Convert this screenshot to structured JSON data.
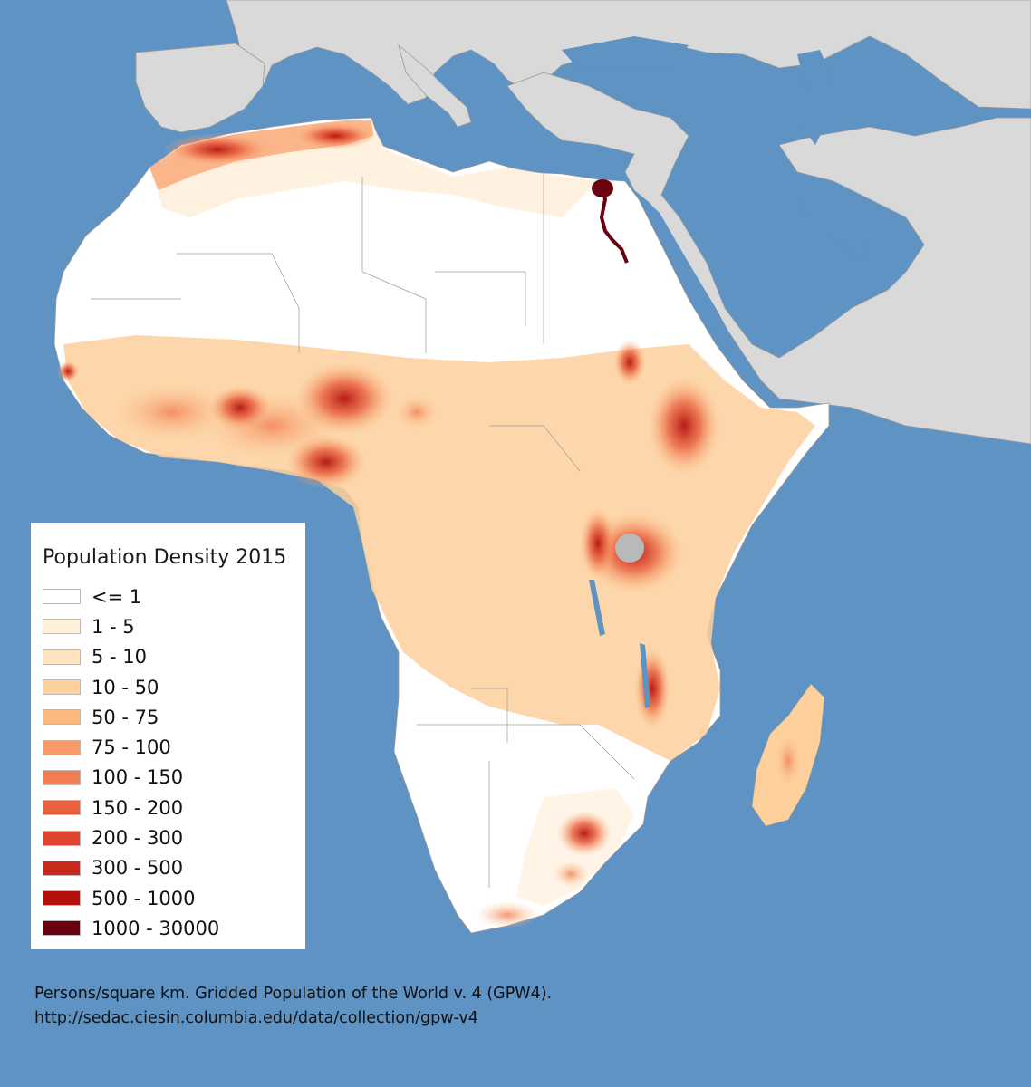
{
  "legend": {
    "title": "Population Density 2015",
    "classes": [
      {
        "label": "<= 1",
        "color": "#ffffff"
      },
      {
        "label": "1 - 5",
        "color": "#fff0dc"
      },
      {
        "label": "5 - 10",
        "color": "#ffe3c0"
      },
      {
        "label": "10 - 50",
        "color": "#fdd09c"
      },
      {
        "label": "50 - 75",
        "color": "#fcb97e"
      },
      {
        "label": "75 - 100",
        "color": "#f99b66"
      },
      {
        "label": "100 - 150",
        "color": "#f27e52"
      },
      {
        "label": "150 - 200",
        "color": "#e9603f"
      },
      {
        "label": "200 - 300",
        "color": "#dd4530"
      },
      {
        "label": "300 - 500",
        "color": "#c92a1c"
      },
      {
        "label": "500 - 1000",
        "color": "#b4110c"
      },
      {
        "label": "1000 - 30000",
        "color": "#6b0010"
      }
    ]
  },
  "caption": {
    "line1": "Persons/square km. Gridded Population of the World v. 4 (GPW4).",
    "line2": "http://sedac.ciesin.columbia.edu/data/collection/gpw-v4"
  },
  "colors": {
    "ocean": "#5e93c4",
    "land_other": "#d9d9d9",
    "border": "#9a9a9a",
    "lake": "#b9b9b9"
  }
}
